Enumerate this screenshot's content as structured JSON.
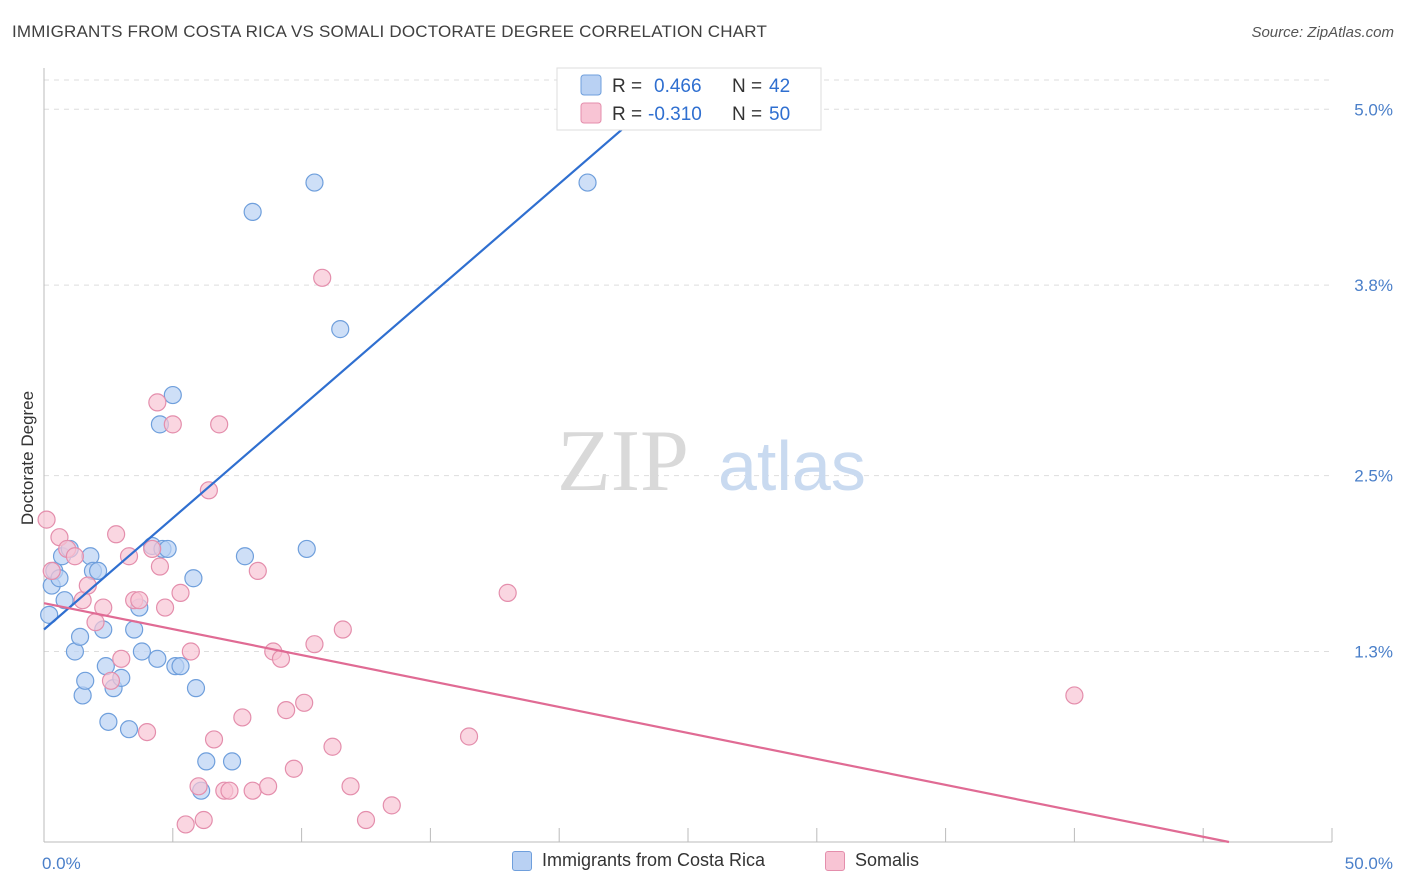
{
  "title": "IMMIGRANTS FROM COSTA RICA VS SOMALI DOCTORATE DEGREE CORRELATION CHART",
  "source": "Source: ZipAtlas.com",
  "watermark": {
    "zip": "ZIP",
    "atlas": "atlas"
  },
  "colors": {
    "blue_fill": "#b9d1f3",
    "blue_stroke": "#6f9fdc",
    "blue_line": "#2f6fd0",
    "pink_fill": "#f8c4d4",
    "pink_stroke": "#e48eac",
    "pink_line": "#e06b94",
    "grid": "#dddddd",
    "axis_label": "#4a7fc9"
  },
  "legend": {
    "r_label": "R =",
    "n_label": "N =",
    "series": [
      {
        "r": "0.466",
        "n": "42"
      },
      {
        "r": "-0.310",
        "n": "50"
      }
    ]
  },
  "bottom_legend": [
    "Immigrants from Costa Rica",
    "Somalis"
  ],
  "chart_data": {
    "type": "scatter",
    "title": "IMMIGRANTS FROM COSTA RICA VS SOMALI DOCTORATE DEGREE CORRELATION CHART",
    "xlabel": "",
    "ylabel": "Doctorate Degree",
    "xlim": [
      0,
      50
    ],
    "ylim": [
      0,
      5.2
    ],
    "x_tick_labels": [
      "0.0%",
      "50.0%"
    ],
    "y_ticks": [
      1.3,
      2.5,
      3.8,
      5.0
    ],
    "y_tick_labels": [
      "1.3%",
      "2.5%",
      "3.8%",
      "5.0%"
    ],
    "grid": true,
    "legend_position": "top-center",
    "series": [
      {
        "name": "Immigrants from Costa Rica",
        "r": 0.466,
        "n": 42,
        "trend": {
          "x": [
            0,
            24
          ],
          "y": [
            1.45,
            5.1
          ]
        },
        "points": [
          [
            0.2,
            1.55
          ],
          [
            0.3,
            1.75
          ],
          [
            0.4,
            1.85
          ],
          [
            0.6,
            1.8
          ],
          [
            0.7,
            1.95
          ],
          [
            0.8,
            1.65
          ],
          [
            1.0,
            2.0
          ],
          [
            1.2,
            1.3
          ],
          [
            1.4,
            1.4
          ],
          [
            1.5,
            1.0
          ],
          [
            1.6,
            1.1
          ],
          [
            1.8,
            1.95
          ],
          [
            1.9,
            1.85
          ],
          [
            2.1,
            1.85
          ],
          [
            2.3,
            1.45
          ],
          [
            2.4,
            1.2
          ],
          [
            2.5,
            0.82
          ],
          [
            2.7,
            1.05
          ],
          [
            3.0,
            1.12
          ],
          [
            3.3,
            0.77
          ],
          [
            3.5,
            1.45
          ],
          [
            3.7,
            1.6
          ],
          [
            3.8,
            1.3
          ],
          [
            4.2,
            2.02
          ],
          [
            4.4,
            1.25
          ],
          [
            4.5,
            2.85
          ],
          [
            4.6,
            2.0
          ],
          [
            4.8,
            2.0
          ],
          [
            5.0,
            3.05
          ],
          [
            5.1,
            1.2
          ],
          [
            5.3,
            1.2
          ],
          [
            5.8,
            1.8
          ],
          [
            5.9,
            1.05
          ],
          [
            6.1,
            0.35
          ],
          [
            6.3,
            0.55
          ],
          [
            7.3,
            0.55
          ],
          [
            7.8,
            1.95
          ],
          [
            8.1,
            4.3
          ],
          [
            10.2,
            2.0
          ],
          [
            10.5,
            4.5
          ],
          [
            11.5,
            3.5
          ],
          [
            21.1,
            4.5
          ]
        ]
      },
      {
        "name": "Somalis",
        "r": -0.31,
        "n": 50,
        "trend": {
          "x": [
            0,
            46
          ],
          "y": [
            1.63,
            0.0
          ]
        },
        "points": [
          [
            0.1,
            2.2
          ],
          [
            0.3,
            1.85
          ],
          [
            0.6,
            2.08
          ],
          [
            0.9,
            2.0
          ],
          [
            1.2,
            1.95
          ],
          [
            1.5,
            1.65
          ],
          [
            1.7,
            1.75
          ],
          [
            2.0,
            1.5
          ],
          [
            2.3,
            1.6
          ],
          [
            2.6,
            1.1
          ],
          [
            2.8,
            2.1
          ],
          [
            3.0,
            1.25
          ],
          [
            3.3,
            1.95
          ],
          [
            3.5,
            1.65
          ],
          [
            3.7,
            1.65
          ],
          [
            4.0,
            0.75
          ],
          [
            4.2,
            2.0
          ],
          [
            4.4,
            3.0
          ],
          [
            4.5,
            1.88
          ],
          [
            4.7,
            1.6
          ],
          [
            5.0,
            2.85
          ],
          [
            5.3,
            1.7
          ],
          [
            5.5,
            0.12
          ],
          [
            5.7,
            1.3
          ],
          [
            6.0,
            0.38
          ],
          [
            6.2,
            0.15
          ],
          [
            6.4,
            2.4
          ],
          [
            6.6,
            0.7
          ],
          [
            6.8,
            2.85
          ],
          [
            7.0,
            0.35
          ],
          [
            7.2,
            0.35
          ],
          [
            7.7,
            0.85
          ],
          [
            8.1,
            0.35
          ],
          [
            8.3,
            1.85
          ],
          [
            8.7,
            0.38
          ],
          [
            8.9,
            1.3
          ],
          [
            9.2,
            1.25
          ],
          [
            9.4,
            0.9
          ],
          [
            9.7,
            0.5
          ],
          [
            10.1,
            0.95
          ],
          [
            10.5,
            1.35
          ],
          [
            10.8,
            3.85
          ],
          [
            11.2,
            0.65
          ],
          [
            11.6,
            1.45
          ],
          [
            11.9,
            0.38
          ],
          [
            12.5,
            0.15
          ],
          [
            13.5,
            0.25
          ],
          [
            16.5,
            0.72
          ],
          [
            18.0,
            1.7
          ],
          [
            40.0,
            1.0
          ]
        ]
      }
    ]
  }
}
